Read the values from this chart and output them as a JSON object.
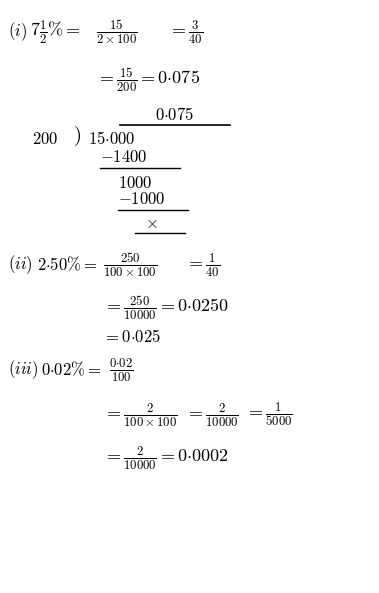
{
  "bg_color": "#ffffff",
  "text_color": "#000000",
  "fig_width": 3.79,
  "fig_height": 5.93,
  "dpi": 100
}
